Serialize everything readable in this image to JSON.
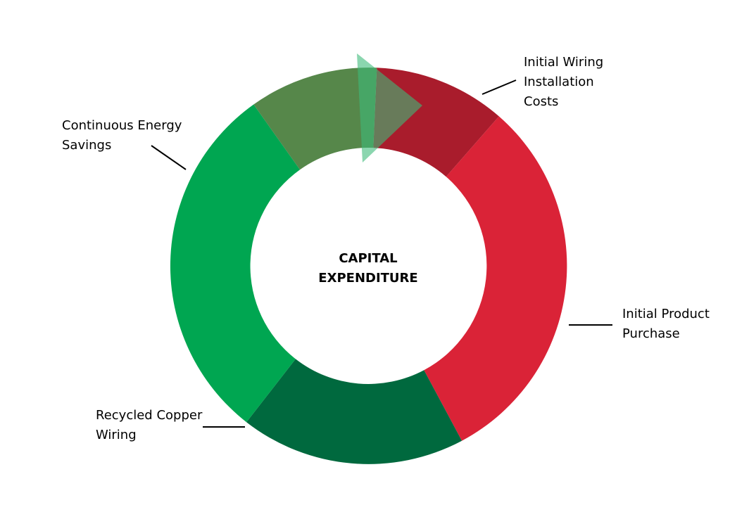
{
  "center": {
    "line1": "CAPITAL",
    "line2": "EXPENDITURE"
  },
  "segments": [
    {
      "name": "initial-wiring-installation-costs",
      "color": "#a91c2c"
    },
    {
      "name": "initial-product-purchase",
      "color": "#da2337"
    },
    {
      "name": "recycled-copper-wiring",
      "color": "#00693e"
    },
    {
      "name": "continuous-energy-savings",
      "color": "#00a651"
    },
    {
      "name": "transition-segment",
      "color": "#56874a"
    }
  ],
  "arrow": {
    "color": "#3dbb79"
  },
  "labels": {
    "wiring": {
      "line1": "Initial Wiring",
      "line2": "Installation",
      "line3": "Costs"
    },
    "product": {
      "line1": "Initial Product",
      "line2": "Purchase"
    },
    "copper": {
      "line1": "Recycled Copper",
      "line2": "Wiring"
    },
    "energy": {
      "line1": "Continuous Energy",
      "line2": "Savings"
    }
  }
}
